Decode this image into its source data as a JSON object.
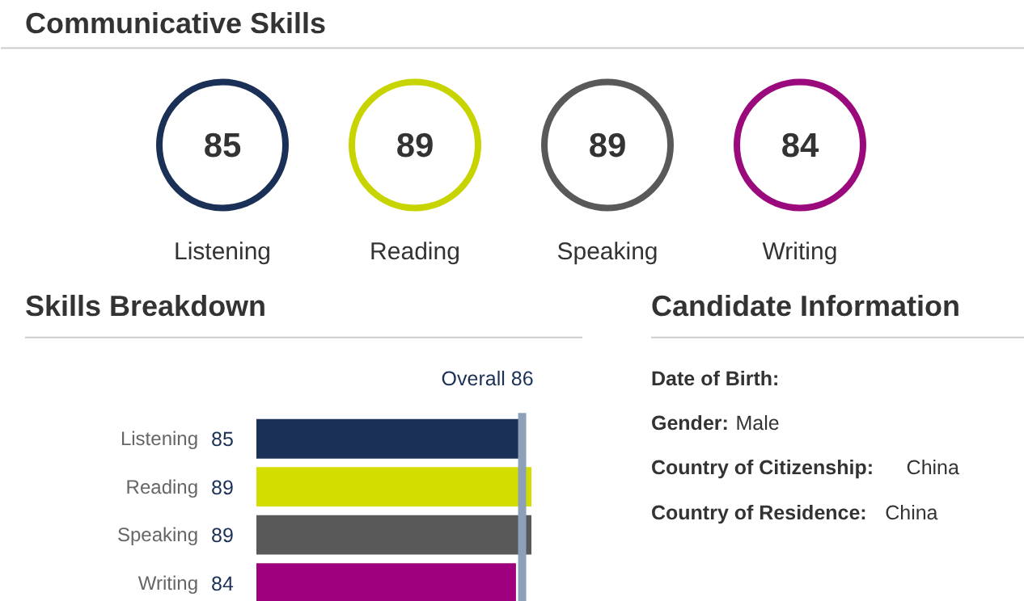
{
  "chart_data": [
    {
      "type": "other",
      "title": "Communicative Skills",
      "categories": [
        "Listening",
        "Reading",
        "Speaking",
        "Writing"
      ],
      "value_labels": [
        "85",
        "89",
        "89",
        "84"
      ],
      "colors": [
        "#1b3057",
        "#c8d400",
        "#595959",
        "#9b0a7d"
      ]
    },
    {
      "type": "bar",
      "orientation": "horizontal",
      "title": "Skills Breakdown",
      "categories": [
        "Listening",
        "Reading",
        "Speaking",
        "Writing"
      ],
      "values": [
        85,
        89,
        89,
        84
      ],
      "colors": [
        "#1b3057",
        "#d4dd00",
        "#595959",
        "#9e007e"
      ],
      "data_labels": true,
      "ref_lines": [
        {
          "axis": "x",
          "value": 86,
          "label": "Overall 86",
          "color": "#8da0b8"
        }
      ]
    },
    {
      "type": "other",
      "title": "Candidate Information",
      "annotations": [
        "Date of Birth:",
        "Gender: Male",
        "Country of Citizenship: China",
        "Country of Residence: China"
      ]
    }
  ]
}
